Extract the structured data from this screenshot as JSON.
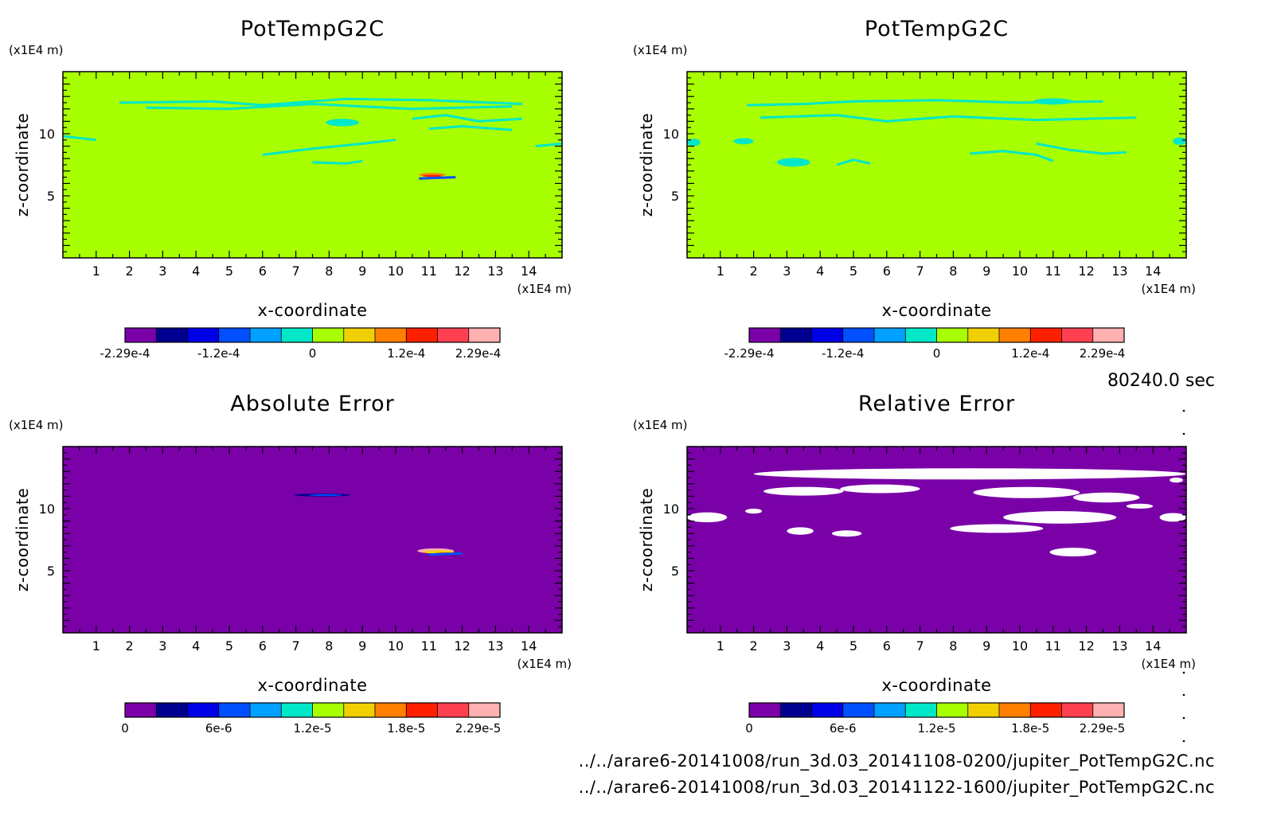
{
  "time_label": "80240.0 sec",
  "files": [
    "../../arare6-20141008/run_3d.03_20141108-0200/jupiter_PotTempG2C.nc",
    "../../arare6-20141008/run_3d.03_20141122-1600/jupiter_PotTempG2C.nc"
  ],
  "colors": {
    "scale": [
      "#7a00a8",
      "#000090",
      "#0000e6",
      "#0050ff",
      "#00a0ff",
      "#00e8c8",
      "#a8ff00",
      "#f0d000",
      "#ff8000",
      "#ff2000",
      "#ff4050",
      "#ffb0b0"
    ],
    "white_patch": "#ffffff"
  },
  "chart_data": [
    {
      "type": "heatmap",
      "title": "PotTempG2C",
      "xlabel": "x-coordinate",
      "ylabel": "z-coordinate",
      "x_unit": "(x1E4 m)",
      "y_unit": "(x1E4 m)",
      "xlim": [
        0,
        15
      ],
      "ylim": [
        0,
        15
      ],
      "xticks": [
        1,
        2,
        3,
        4,
        5,
        6,
        7,
        8,
        9,
        10,
        11,
        12,
        13,
        14
      ],
      "yticks": [
        5,
        10
      ],
      "background_level": 6,
      "colorbar": {
        "labels": [
          "-2.29e-4",
          "-1.2e-4",
          "0",
          "1.2e-4",
          "2.29e-4"
        ],
        "label_positions": [
          0,
          3,
          6,
          9,
          11.3
        ]
      },
      "features": [
        {
          "level": 5,
          "kind": "contour",
          "points": [
            [
              1.7,
              12.5
            ],
            [
              4.5,
              12.6
            ],
            [
              6.0,
              12.3
            ],
            [
              8.5,
              12.8
            ],
            [
              11.0,
              12.7
            ],
            [
              13.8,
              12.4
            ]
          ]
        },
        {
          "level": 5,
          "kind": "contour",
          "points": [
            [
              2.5,
              12.1
            ],
            [
              5.0,
              12.0
            ],
            [
              7.5,
              12.4
            ],
            [
              10.5,
              12.0
            ],
            [
              13.5,
              12.2
            ]
          ]
        },
        {
          "level": 5,
          "kind": "blob",
          "cx": 8.4,
          "cy": 10.9,
          "rx": 0.5,
          "ry": 0.3
        },
        {
          "level": 5,
          "kind": "contour",
          "points": [
            [
              10.5,
              11.2
            ],
            [
              11.5,
              11.5
            ],
            [
              12.5,
              11.0
            ],
            [
              13.8,
              11.2
            ]
          ]
        },
        {
          "level": 5,
          "kind": "contour",
          "points": [
            [
              11.0,
              10.4
            ],
            [
              12.0,
              10.6
            ],
            [
              13.5,
              10.3
            ]
          ]
        },
        {
          "level": 5,
          "kind": "contour",
          "points": [
            [
              6.0,
              8.3
            ],
            [
              7.5,
              8.8
            ],
            [
              9.0,
              9.2
            ],
            [
              10.0,
              9.5
            ]
          ]
        },
        {
          "level": 5,
          "kind": "contour",
          "points": [
            [
              7.5,
              7.7
            ],
            [
              8.5,
              7.6
            ],
            [
              9.0,
              7.8
            ]
          ]
        },
        {
          "level": 5,
          "kind": "contour",
          "points": [
            [
              0.0,
              9.8
            ],
            [
              1.0,
              9.5
            ]
          ]
        },
        {
          "level": 5,
          "kind": "contour",
          "points": [
            [
              14.2,
              9.0
            ],
            [
              15.0,
              9.2
            ]
          ]
        },
        {
          "level": 8,
          "kind": "blob",
          "cx": 11.1,
          "cy": 6.7,
          "rx": 0.4,
          "ry": 0.15
        },
        {
          "level": 9,
          "kind": "blob",
          "cx": 11.1,
          "cy": 6.6,
          "rx": 0.3,
          "ry": 0.08
        },
        {
          "level": 3,
          "kind": "contour",
          "points": [
            [
              10.7,
              6.4
            ],
            [
              11.8,
              6.5
            ]
          ]
        }
      ]
    },
    {
      "type": "heatmap",
      "title": "PotTempG2C",
      "xlabel": "x-coordinate",
      "ylabel": "z-coordinate",
      "x_unit": "(x1E4 m)",
      "y_unit": "(x1E4 m)",
      "xlim": [
        0,
        15
      ],
      "ylim": [
        0,
        15
      ],
      "xticks": [
        1,
        2,
        3,
        4,
        5,
        6,
        7,
        8,
        9,
        10,
        11,
        12,
        13,
        14
      ],
      "yticks": [
        5,
        10
      ],
      "background_level": 6,
      "colorbar": {
        "labels": [
          "-2.29e-4",
          "-1.2e-4",
          "0",
          "1.2e-4",
          "2.29e-4"
        ],
        "label_positions": [
          0,
          3,
          6,
          9,
          11.3
        ]
      },
      "features": [
        {
          "level": 5,
          "kind": "contour",
          "points": [
            [
              1.8,
              12.3
            ],
            [
              3.5,
              12.4
            ],
            [
              5.0,
              12.6
            ],
            [
              7.5,
              12.7
            ],
            [
              10.0,
              12.5
            ],
            [
              12.5,
              12.6
            ]
          ]
        },
        {
          "level": 5,
          "kind": "contour",
          "points": [
            [
              2.2,
              11.3
            ],
            [
              4.5,
              11.5
            ],
            [
              6.0,
              11.0
            ],
            [
              8.0,
              11.4
            ],
            [
              10.5,
              11.1
            ],
            [
              13.5,
              11.3
            ]
          ]
        },
        {
          "level": 5,
          "kind": "blob",
          "cx": 11.0,
          "cy": 12.6,
          "rx": 0.6,
          "ry": 0.25
        },
        {
          "level": 5,
          "kind": "blob",
          "cx": 1.7,
          "cy": 9.4,
          "rx": 0.3,
          "ry": 0.25
        },
        {
          "level": 5,
          "kind": "blob",
          "cx": 3.2,
          "cy": 7.7,
          "rx": 0.5,
          "ry": 0.35
        },
        {
          "level": 5,
          "kind": "contour",
          "points": [
            [
              4.5,
              7.5
            ],
            [
              5.0,
              7.9
            ],
            [
              5.5,
              7.6
            ]
          ]
        },
        {
          "level": 5,
          "kind": "contour",
          "points": [
            [
              8.5,
              8.4
            ],
            [
              9.5,
              8.6
            ],
            [
              10.5,
              8.3
            ],
            [
              11.0,
              7.8
            ]
          ]
        },
        {
          "level": 5,
          "kind": "contour",
          "points": [
            [
              10.5,
              9.2
            ],
            [
              11.5,
              8.7
            ],
            [
              12.5,
              8.4
            ],
            [
              13.2,
              8.5
            ]
          ]
        },
        {
          "level": 5,
          "kind": "blob",
          "cx": 0.2,
          "cy": 9.3,
          "rx": 0.2,
          "ry": 0.3
        },
        {
          "level": 5,
          "kind": "blob",
          "cx": 14.8,
          "cy": 9.4,
          "rx": 0.2,
          "ry": 0.3
        }
      ]
    },
    {
      "type": "heatmap",
      "title": "Absolute Error",
      "xlabel": "x-coordinate",
      "ylabel": "z-coordinate",
      "x_unit": "(x1E4 m)",
      "y_unit": "(x1E4 m)",
      "xlim": [
        0,
        15
      ],
      "ylim": [
        0,
        15
      ],
      "xticks": [
        1,
        2,
        3,
        4,
        5,
        6,
        7,
        8,
        9,
        10,
        11,
        12,
        13,
        14
      ],
      "yticks": [
        5,
        10
      ],
      "background_level": 0,
      "colorbar": {
        "labels": [
          "0",
          "6e-6",
          "1.2e-5",
          "1.8e-5",
          "2.29e-5"
        ],
        "label_positions": [
          0,
          3,
          6,
          9,
          11.3
        ]
      },
      "features": [
        {
          "level": 1,
          "kind": "blob",
          "cx": 7.8,
          "cy": 11.1,
          "rx": 0.85,
          "ry": 0.12
        },
        {
          "level": 3,
          "kind": "blob",
          "cx": 7.9,
          "cy": 11.1,
          "rx": 0.5,
          "ry": 0.07
        },
        {
          "level": 11,
          "kind": "blob",
          "cx": 11.2,
          "cy": 6.6,
          "rx": 0.55,
          "ry": 0.2
        },
        {
          "level": 7,
          "kind": "blob",
          "cx": 11.3,
          "cy": 6.5,
          "rx": 0.45,
          "ry": 0.14
        },
        {
          "level": 9,
          "kind": "blob",
          "cx": 11.5,
          "cy": 6.4,
          "rx": 0.3,
          "ry": 0.07
        },
        {
          "level": 3,
          "kind": "contour",
          "points": [
            [
              11.0,
              6.3
            ],
            [
              12.0,
              6.4
            ]
          ]
        }
      ]
    },
    {
      "type": "heatmap",
      "title": "Relative Error",
      "xlabel": "x-coordinate",
      "ylabel": "z-coordinate",
      "x_unit": "(x1E4 m)",
      "y_unit": "(x1E4 m)",
      "xlim": [
        0,
        15
      ],
      "ylim": [
        0,
        15
      ],
      "xticks": [
        1,
        2,
        3,
        4,
        5,
        6,
        7,
        8,
        9,
        10,
        11,
        12,
        13,
        14
      ],
      "yticks": [
        5,
        10
      ],
      "background_level": 0,
      "colorbar": {
        "labels": [
          "0",
          "6e-6",
          "1.2e-5",
          "1.8e-5",
          "2.29e-5"
        ],
        "label_positions": [
          0,
          3,
          6,
          9,
          11.3
        ]
      },
      "features": [
        {
          "level": -1,
          "kind": "blob",
          "cx": 8.5,
          "cy": 12.8,
          "rx": 6.5,
          "ry": 0.45
        },
        {
          "level": -1,
          "kind": "blob",
          "cx": 3.5,
          "cy": 11.4,
          "rx": 1.2,
          "ry": 0.35
        },
        {
          "level": -1,
          "kind": "blob",
          "cx": 5.8,
          "cy": 11.6,
          "rx": 1.2,
          "ry": 0.35
        },
        {
          "level": -1,
          "kind": "blob",
          "cx": 10.2,
          "cy": 11.3,
          "rx": 1.6,
          "ry": 0.45
        },
        {
          "level": -1,
          "kind": "blob",
          "cx": 12.6,
          "cy": 10.9,
          "rx": 1.0,
          "ry": 0.4
        },
        {
          "level": -1,
          "kind": "blob",
          "cx": 11.2,
          "cy": 9.3,
          "rx": 1.7,
          "ry": 0.5
        },
        {
          "level": -1,
          "kind": "blob",
          "cx": 9.3,
          "cy": 8.4,
          "rx": 1.4,
          "ry": 0.35
        },
        {
          "level": -1,
          "kind": "blob",
          "cx": 0.6,
          "cy": 9.3,
          "rx": 0.6,
          "ry": 0.4
        },
        {
          "level": -1,
          "kind": "blob",
          "cx": 2.0,
          "cy": 9.8,
          "rx": 0.25,
          "ry": 0.2
        },
        {
          "level": -1,
          "kind": "blob",
          "cx": 3.4,
          "cy": 8.2,
          "rx": 0.4,
          "ry": 0.3
        },
        {
          "level": -1,
          "kind": "blob",
          "cx": 4.8,
          "cy": 8.0,
          "rx": 0.45,
          "ry": 0.25
        },
        {
          "level": -1,
          "kind": "blob",
          "cx": 11.6,
          "cy": 6.5,
          "rx": 0.7,
          "ry": 0.35
        },
        {
          "level": -1,
          "kind": "blob",
          "cx": 14.7,
          "cy": 12.3,
          "rx": 0.2,
          "ry": 0.2
        },
        {
          "level": -1,
          "kind": "blob",
          "cx": 14.6,
          "cy": 9.3,
          "rx": 0.4,
          "ry": 0.35
        },
        {
          "level": -1,
          "kind": "blob",
          "cx": 13.6,
          "cy": 10.2,
          "rx": 0.4,
          "ry": 0.2
        }
      ]
    }
  ]
}
